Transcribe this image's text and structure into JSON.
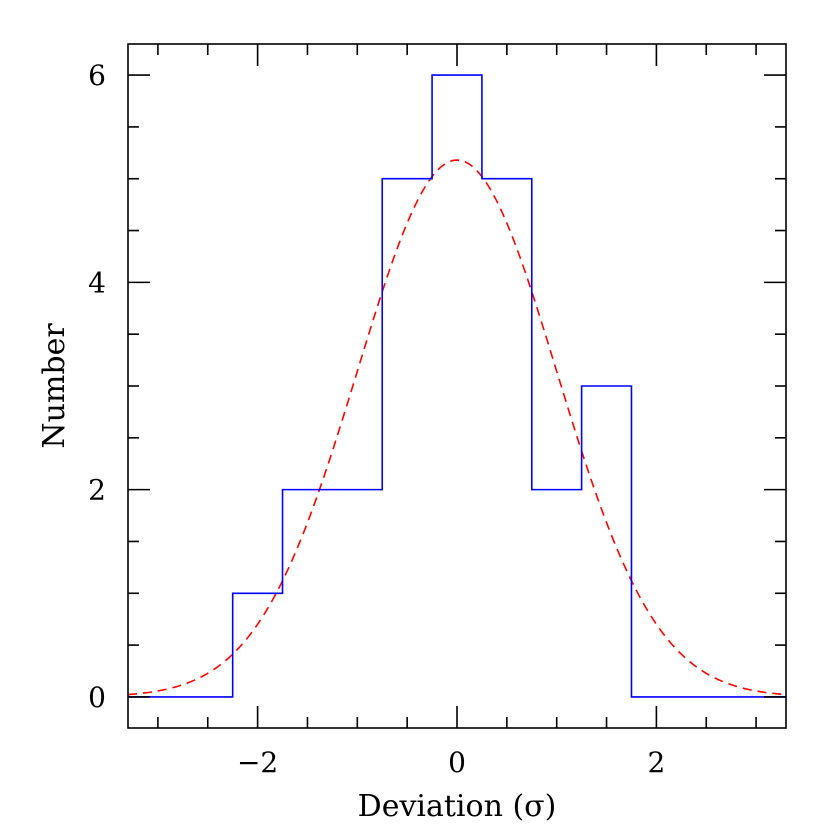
{
  "chart_data": {
    "type": "histogram",
    "title": "",
    "xlabel": "Deviation (σ)",
    "ylabel": "Number",
    "xlim": [
      -3.3,
      3.3
    ],
    "ylim": [
      -0.3,
      6.3
    ],
    "x_ticks": [
      -2,
      0,
      2
    ],
    "x_tick_labels": [
      "−2",
      "0",
      "2"
    ],
    "y_ticks": [
      0,
      2,
      4,
      6
    ],
    "y_tick_labels": [
      "0",
      "2",
      "4",
      "6"
    ],
    "grid": false,
    "series": [
      {
        "type": "histogram",
        "color": "#0000ff",
        "bins": [
          {
            "x0": -3.3,
            "x1": -2.25,
            "count": 0
          },
          {
            "x0": -2.25,
            "x1": -1.75,
            "count": 1
          },
          {
            "x0": -1.75,
            "x1": -0.75,
            "count": 2
          },
          {
            "x0": -0.75,
            "x1": -0.25,
            "count": 5
          },
          {
            "x0": -0.25,
            "x1": 0.25,
            "count": 6
          },
          {
            "x0": 0.25,
            "x1": 0.75,
            "count": 5
          },
          {
            "x0": 0.75,
            "x1": 1.25,
            "count": 2
          },
          {
            "x0": 1.25,
            "x1": 1.75,
            "count": 3
          },
          {
            "x0": 1.75,
            "x1": 3.3,
            "count": 0
          }
        ]
      },
      {
        "type": "gaussian-fit",
        "color": "#ff0000",
        "line_style": "dashed",
        "amplitude": 5.18,
        "mean": 0,
        "sigma": 1
      }
    ]
  }
}
